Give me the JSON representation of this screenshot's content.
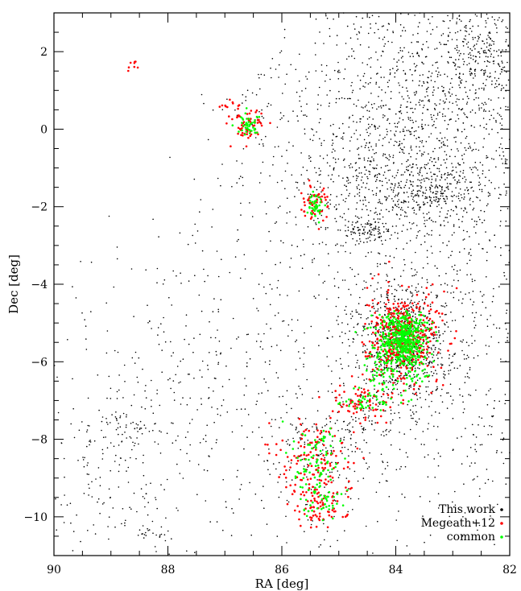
{
  "chart_data": {
    "type": "scatter",
    "xlabel": "RA [deg]",
    "ylabel": "Dec [deg]",
    "xlim": [
      90,
      82
    ],
    "ylim": [
      -11,
      3
    ],
    "x_ticks": [
      {
        "value": 90,
        "label": "90"
      },
      {
        "value": 88,
        "label": "88"
      },
      {
        "value": 86,
        "label": "86"
      },
      {
        "value": 84,
        "label": "84"
      },
      {
        "value": 82,
        "label": "82"
      }
    ],
    "y_ticks": [
      {
        "value": 2,
        "label": "2"
      },
      {
        "value": 0,
        "label": "0"
      },
      {
        "value": -2,
        "label": "−2"
      },
      {
        "value": -4,
        "label": "−4"
      },
      {
        "value": -6,
        "label": "−6"
      },
      {
        "value": -8,
        "label": "−8"
      },
      {
        "value": -10,
        "label": "−10"
      }
    ],
    "legend_position": "bottom-right",
    "grid": false,
    "series": [
      {
        "name": "This work",
        "color": "#000000",
        "regions": [
          {
            "ra": 83.6,
            "dec": 1.2,
            "sd_ra": 1.0,
            "sd_dec": 1.4,
            "n": 700
          },
          {
            "ra": 83.8,
            "dec": -1.2,
            "sd_ra": 1.3,
            "sd_dec": 1.1,
            "n": 900
          },
          {
            "ra": 84.5,
            "dec": -2.6,
            "sd_ra": 0.2,
            "sd_dec": 0.12,
            "n": 80
          },
          {
            "ra": 83.4,
            "dec": -1.6,
            "sd_ra": 0.35,
            "sd_dec": 0.25,
            "n": 150
          },
          {
            "ra": 83.9,
            "dec": -5.5,
            "sd_ra": 0.4,
            "sd_dec": 0.8,
            "n": 700
          },
          {
            "ra": 83.0,
            "dec": -6.0,
            "sd_ra": 1.3,
            "sd_dec": 2.3,
            "n": 650
          },
          {
            "ra": 85.6,
            "dec": -3.8,
            "sd_ra": 1.5,
            "sd_dec": 1.8,
            "n": 180
          },
          {
            "ra": 87.5,
            "dec": -6.5,
            "sd_ra": 1.3,
            "sd_dec": 1.8,
            "n": 300
          },
          {
            "ra": 89.0,
            "dec": -9.0,
            "sd_ra": 0.8,
            "sd_dec": 1.2,
            "n": 160
          },
          {
            "ra": 85.5,
            "dec": -9.0,
            "sd_ra": 0.6,
            "sd_dec": 1.0,
            "n": 150
          },
          {
            "ra": 84.8,
            "dec": -7.8,
            "sd_ra": 0.5,
            "sd_dec": 0.5,
            "n": 100
          },
          {
            "ra": 86.2,
            "dec": 0.5,
            "sd_ra": 0.5,
            "sd_dec": 0.8,
            "n": 60
          },
          {
            "ra": 88.7,
            "dec": -7.7,
            "sd_ra": 0.3,
            "sd_dec": 0.2,
            "n": 40
          },
          {
            "ra": 88.3,
            "dec": -10.4,
            "sd_ra": 0.2,
            "sd_dec": 0.1,
            "n": 20
          },
          {
            "ra": 82.5,
            "dec": 2.0,
            "sd_ra": 0.4,
            "sd_dec": 0.6,
            "n": 250
          }
        ]
      },
      {
        "name": "Megeath+12",
        "color": "#ff0000",
        "regions": [
          {
            "ra": 88.6,
            "dec": 1.7,
            "sd_ra": 0.05,
            "sd_dec": 0.1,
            "n": 8
          },
          {
            "ra": 86.9,
            "dec": 0.65,
            "sd_ra": 0.12,
            "sd_dec": 0.07,
            "n": 10
          },
          {
            "ra": 86.6,
            "dec": 0.1,
            "sd_ra": 0.15,
            "sd_dec": 0.2,
            "n": 60
          },
          {
            "ra": 85.4,
            "dec": -1.9,
            "sd_ra": 0.12,
            "sd_dec": 0.25,
            "n": 60
          },
          {
            "ra": 83.9,
            "dec": -5.4,
            "sd_ra": 0.3,
            "sd_dec": 0.6,
            "n": 450
          },
          {
            "ra": 84.6,
            "dec": -7.0,
            "sd_ra": 0.3,
            "sd_dec": 0.3,
            "n": 80
          },
          {
            "ra": 85.4,
            "dec": -8.5,
            "sd_ra": 0.3,
            "sd_dec": 0.5,
            "n": 130
          },
          {
            "ra": 85.3,
            "dec": -9.6,
            "sd_ra": 0.25,
            "sd_dec": 0.3,
            "n": 80
          }
        ]
      },
      {
        "name": "common",
        "color": "#00ff00",
        "regions": [
          {
            "ra": 86.6,
            "dec": 0.1,
            "sd_ra": 0.1,
            "sd_dec": 0.15,
            "n": 40
          },
          {
            "ra": 85.4,
            "dec": -1.95,
            "sd_ra": 0.07,
            "sd_dec": 0.15,
            "n": 40
          },
          {
            "ra": 83.85,
            "dec": -5.4,
            "sd_ra": 0.2,
            "sd_dec": 0.35,
            "n": 400
          },
          {
            "ra": 84.0,
            "dec": -6.0,
            "sd_ra": 0.3,
            "sd_dec": 0.5,
            "n": 150
          },
          {
            "ra": 84.6,
            "dec": -7.0,
            "sd_ra": 0.25,
            "sd_dec": 0.2,
            "n": 40
          },
          {
            "ra": 85.4,
            "dec": -8.5,
            "sd_ra": 0.25,
            "sd_dec": 0.45,
            "n": 80
          },
          {
            "ra": 85.3,
            "dec": -9.6,
            "sd_ra": 0.2,
            "sd_dec": 0.25,
            "n": 40
          }
        ]
      }
    ]
  }
}
